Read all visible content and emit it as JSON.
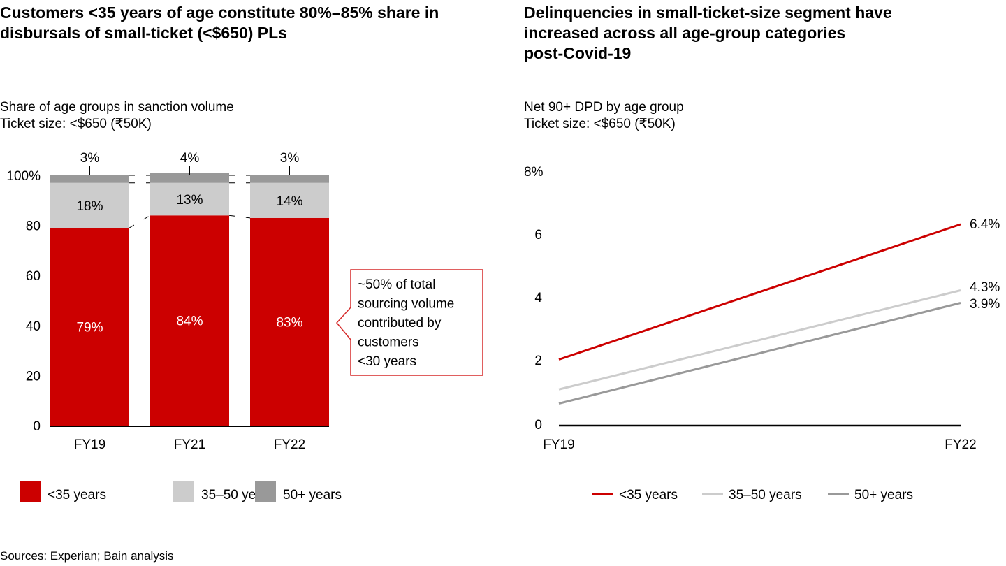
{
  "left": {
    "title": "Customers <35 years of age constitute 80%–85% share in disbursals of small-ticket (<$650) PLs",
    "subtitle1": "Share of age groups in sanction volume",
    "subtitle2": "Ticket size: <$650 (₹50K)",
    "callout": [
      "~50% of total",
      "sourcing volume",
      "contributed by",
      "customers",
      "<30 years"
    ]
  },
  "right": {
    "title_lines": [
      "Delinquencies in small-ticket-size segment have",
      "increased across all age-group categories",
      "post-Covid-19"
    ],
    "subtitle1": "Net 90+ DPD by age group",
    "subtitle2": "Ticket size: <$650 (₹50K)"
  },
  "source": "Sources: Experian; Bain analysis",
  "chart_data": [
    {
      "type": "bar",
      "stacked": true,
      "categories": [
        "FY19",
        "FY21",
        "FY22"
      ],
      "series": [
        {
          "name": "<35 years",
          "values": [
            79,
            84,
            83
          ],
          "labels": [
            "79%",
            "84%",
            "83%"
          ],
          "color": "#cc0000"
        },
        {
          "name": "35–50 years",
          "values": [
            18,
            13,
            14
          ],
          "labels": [
            "18%",
            "13%",
            "14%"
          ],
          "color": "#cccccc"
        },
        {
          "name": "50+ years",
          "values": [
            3,
            4,
            3
          ],
          "labels": [
            "3%",
            "4%",
            "3%"
          ],
          "color": "#999999"
        }
      ],
      "yticks": [
        "0",
        "20",
        "40",
        "60",
        "80",
        "100%"
      ],
      "ylim": [
        0,
        100
      ],
      "legend": "bottom"
    },
    {
      "type": "line",
      "categories": [
        "FY19",
        "FY22"
      ],
      "series": [
        {
          "name": "<35 years",
          "values": [
            2.1,
            6.4
          ],
          "end_label": "6.4%",
          "color": "#cc0000"
        },
        {
          "name": "35–50 years",
          "values": [
            1.15,
            4.3
          ],
          "end_label": "4.3%",
          "color": "#cccccc"
        },
        {
          "name": "50+ years",
          "values": [
            0.7,
            3.9
          ],
          "end_label": "3.9%",
          "color": "#999999"
        }
      ],
      "yticks": [
        "0",
        "2",
        "4",
        "6",
        "8%"
      ],
      "ylim": [
        0,
        8
      ],
      "legend": "bottom"
    }
  ]
}
